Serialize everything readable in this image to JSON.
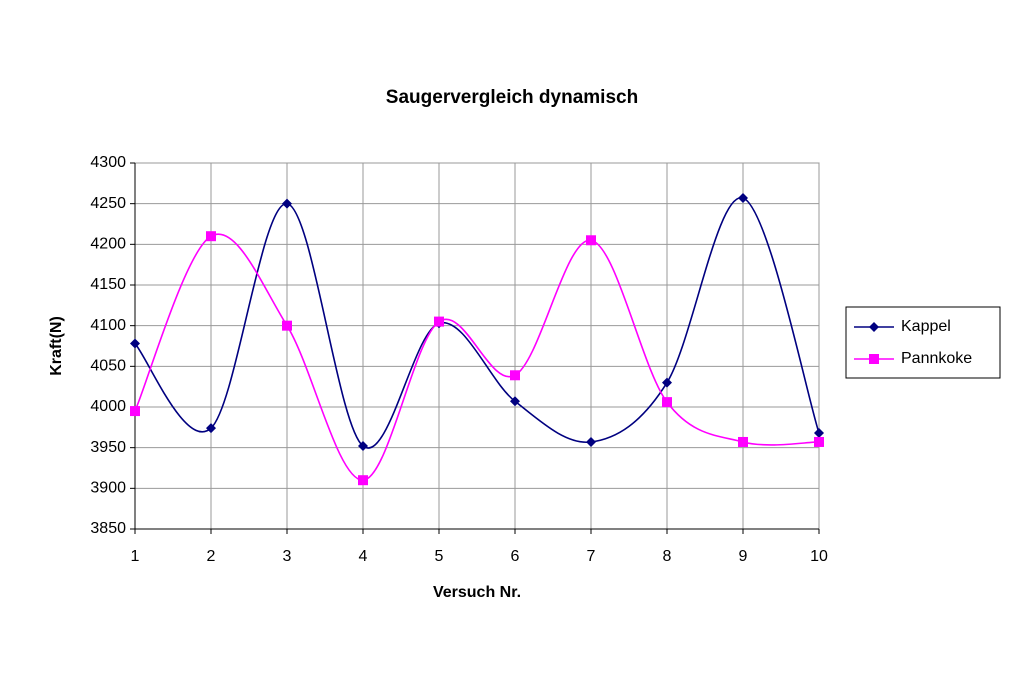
{
  "chart_data": {
    "type": "line",
    "title": "Saugervergleich dynamisch",
    "x_label": "Versuch Nr.",
    "y_label": "Kraft(N)",
    "x": [
      1,
      2,
      3,
      4,
      5,
      6,
      7,
      8,
      9,
      10
    ],
    "series": [
      {
        "name": "Kappel",
        "color": "#000080",
        "marker": "diamond",
        "values": [
          4078,
          3974,
          4250,
          3952,
          4103,
          4007,
          3957,
          4030,
          4257,
          3968
        ]
      },
      {
        "name": "Pannkoke",
        "color": "#ff00ff",
        "marker": "square",
        "values": [
          3995,
          4210,
          4100,
          3910,
          4105,
          4039,
          4205,
          4006,
          3957,
          3957
        ]
      }
    ],
    "xlim": [
      1,
      10
    ],
    "xticks": [
      1,
      2,
      3,
      4,
      5,
      6,
      7,
      8,
      9,
      10
    ],
    "ylim": [
      3850,
      4300
    ],
    "yticks": [
      3850,
      3900,
      3950,
      4000,
      4050,
      4100,
      4150,
      4200,
      4250,
      4300
    ],
    "grid": true,
    "smooth": true,
    "legend": "right"
  }
}
